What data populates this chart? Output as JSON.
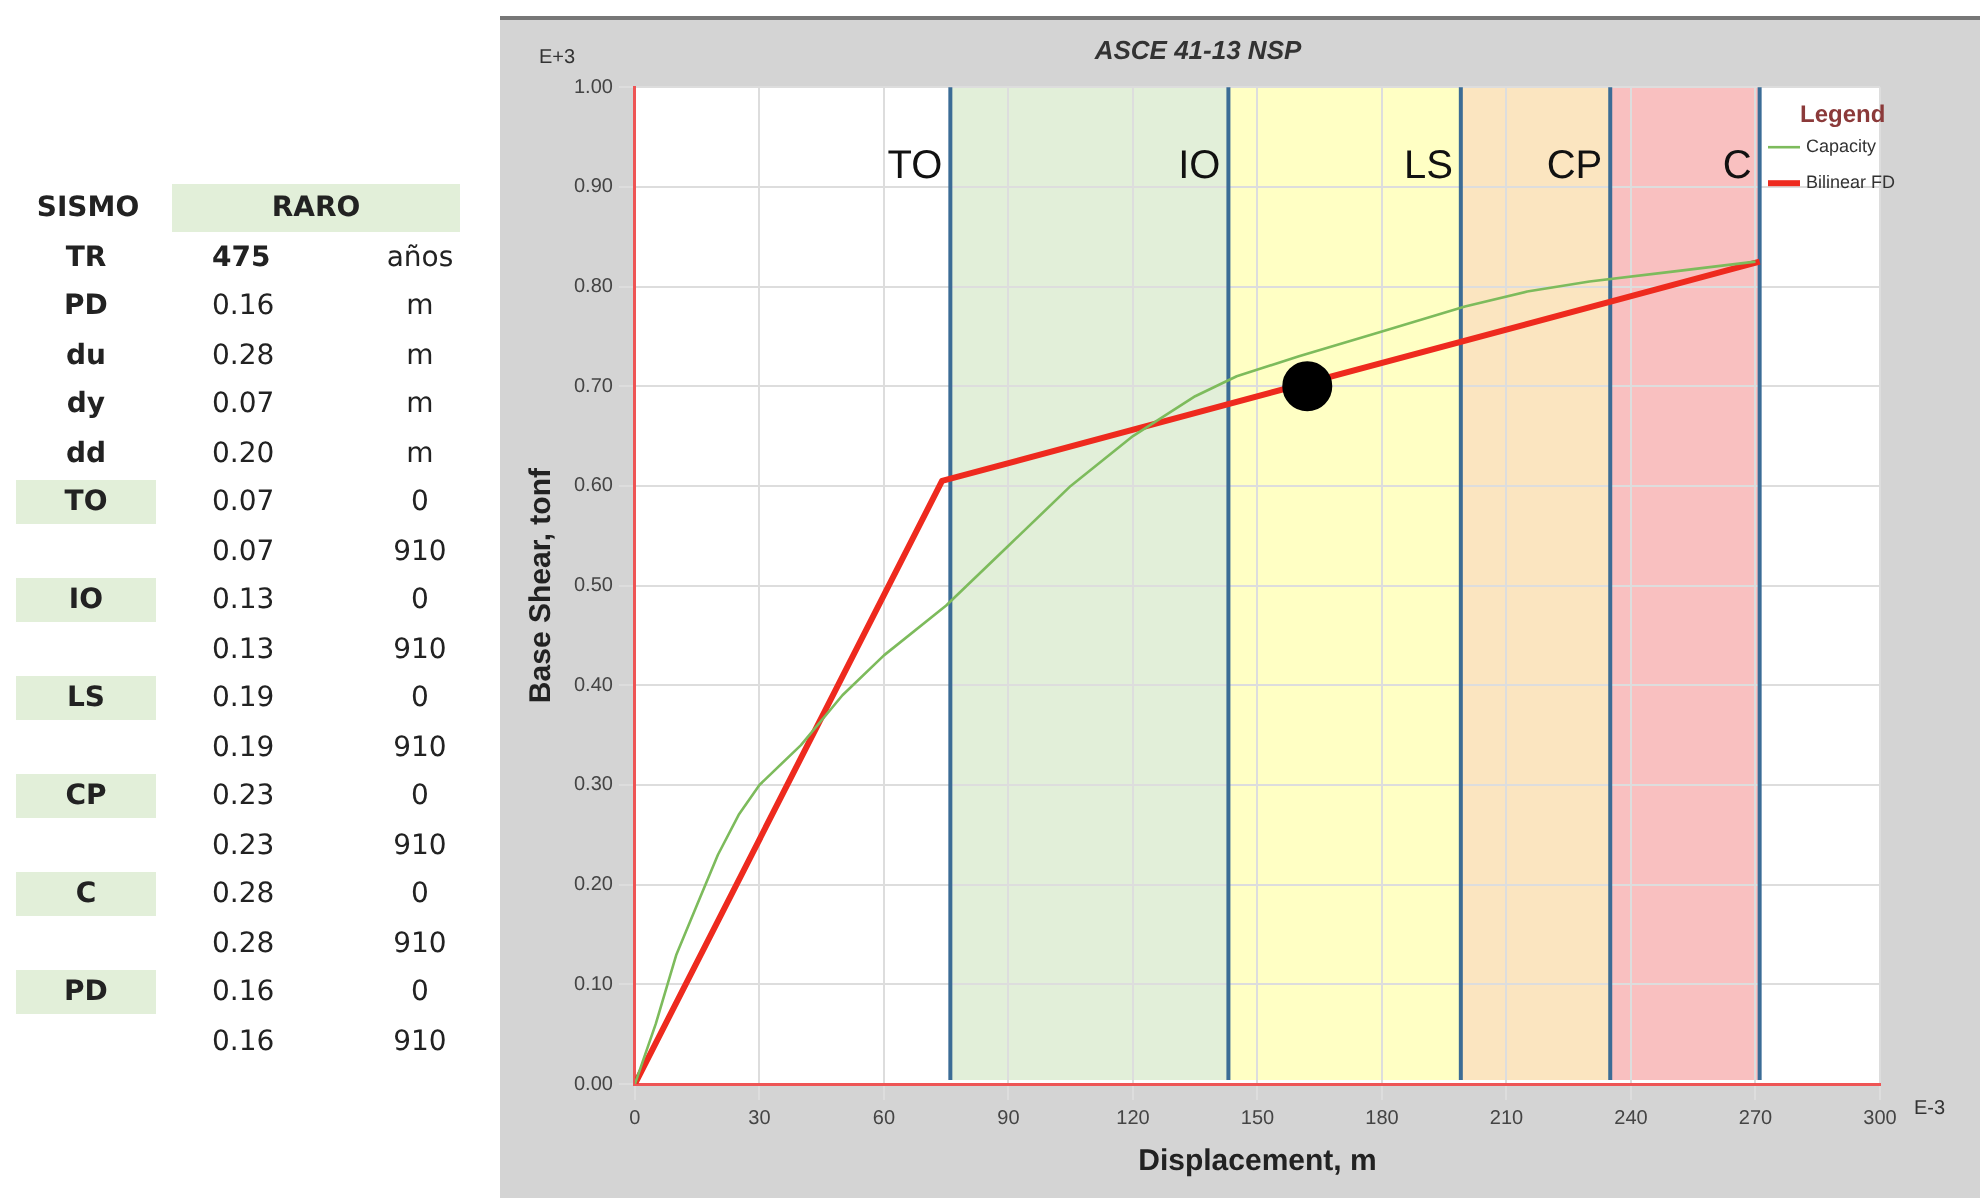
{
  "chart_data": [
    {
      "type": "other",
      "annotations": [
        "SISMO RARO",
        "TR 475 años",
        "PD 0.16 m",
        "du 0.28 m",
        "dy 0.07 m",
        "dd 0.20 m",
        "TO 0.07 0",
        "0.07 910",
        "IO 0.13 0",
        "0.13 910",
        "LS 0.19 0",
        "0.19 910",
        "CP 0.23 0",
        "0.23 910",
        "C 0.28 0",
        "0.28 910",
        "PD 0.16 0",
        "0.16 910"
      ]
    },
    {
      "type": "line",
      "title": "ASCE 41-13 NSP",
      "xlabel": "Displacement, m",
      "ylabel": "Base Shear, tonf",
      "legend_title": "Legend",
      "annotations": [
        "E-3",
        "E+3"
      ],
      "xlim": [
        0,
        300
      ],
      "xticks": [
        0,
        30,
        60,
        90,
        120,
        150,
        180,
        210,
        240,
        270,
        300
      ],
      "ylim": [
        0,
        1
      ],
      "yticks": [
        {
          "value": 0,
          "label": "0.00"
        },
        {
          "value": 0.1,
          "label": "0.10"
        },
        {
          "value": 0.2,
          "label": "0.20"
        },
        {
          "value": 0.3,
          "label": "0.30"
        },
        {
          "value": 0.4,
          "label": "0.40"
        },
        {
          "value": 0.5,
          "label": "0.50"
        },
        {
          "value": 0.6,
          "label": "0.60"
        },
        {
          "value": 0.7,
          "label": "0.70"
        },
        {
          "value": 0.8,
          "label": "0.80"
        },
        {
          "value": 0.9,
          "label": "0.90"
        },
        {
          "value": 1,
          "label": "1.00"
        }
      ],
      "grid": true,
      "legend": "top right",
      "line_style": "solid",
      "bands": [
        {
          "axis": "x",
          "from": 76,
          "to": 143,
          "color": "#e2efd9"
        },
        {
          "axis": "x",
          "from": 143,
          "to": 199,
          "color": "#ffffc4"
        },
        {
          "axis": "x",
          "from": 199,
          "to": 235,
          "color": "#fbe5c0"
        },
        {
          "axis": "x",
          "from": 235,
          "to": 271,
          "color": "#f9c0c0"
        }
      ],
      "ref_lines": [
        {
          "axis": "x",
          "value": 76,
          "label": "TO",
          "color": "#3b6c96"
        },
        {
          "axis": "x",
          "value": 143,
          "label": "IO",
          "color": "#3b6c96"
        },
        {
          "axis": "x",
          "value": 199,
          "label": "LS",
          "color": "#3b6c96"
        },
        {
          "axis": "x",
          "value": 235,
          "label": "CP",
          "color": "#3b6c96"
        },
        {
          "axis": "x",
          "value": 271,
          "label": "C",
          "color": "#3b6c96"
        }
      ],
      "series": [
        {
          "name": "Capacity",
          "color": "#7dbb5c",
          "x": [
            0,
            5,
            10,
            15,
            20,
            25,
            30,
            40,
            50,
            60,
            75,
            90,
            105,
            120,
            135,
            145,
            160,
            180,
            200,
            215,
            230,
            250,
            270
          ],
          "values": [
            0,
            0.06,
            0.13,
            0.18,
            0.23,
            0.27,
            0.3,
            0.34,
            0.39,
            0.43,
            0.48,
            0.54,
            0.6,
            0.65,
            0.69,
            0.71,
            0.73,
            0.755,
            0.78,
            0.795,
            0.805,
            0.815,
            0.825
          ]
        },
        {
          "name": "Bilinear FD",
          "color": "#ee2a1e",
          "x": [
            0,
            74,
            271
          ],
          "values": [
            0,
            0.605,
            0.825
          ]
        },
        {
          "type": "scatter",
          "marker": "circle",
          "color": "#000000",
          "x": [
            162
          ],
          "values": [
            0.7
          ]
        }
      ]
    }
  ]
}
